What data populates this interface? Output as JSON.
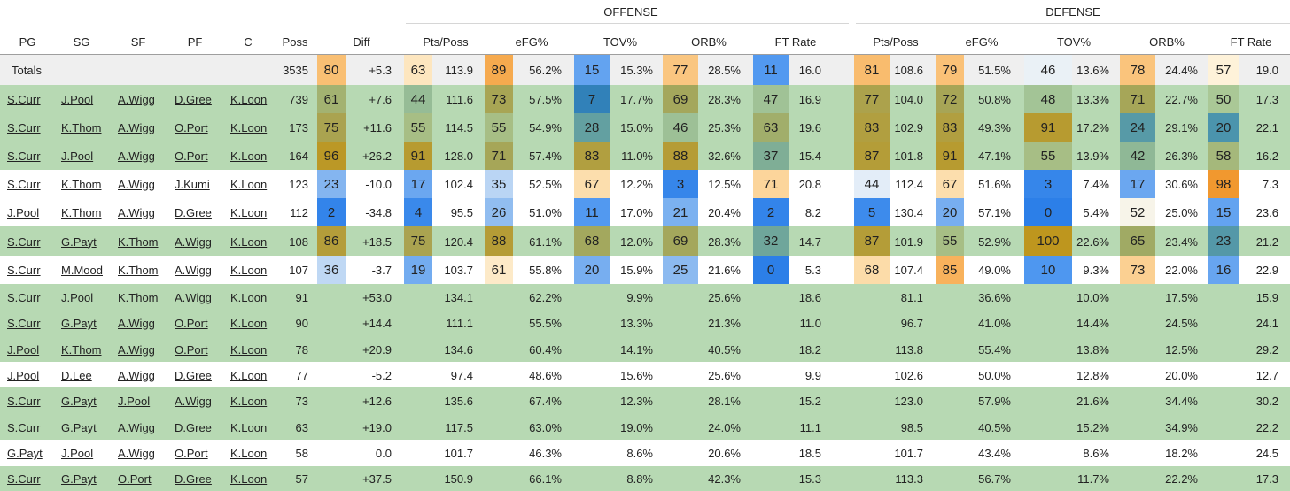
{
  "groups": {
    "offense": "OFFENSE",
    "defense": "DEFENSE"
  },
  "columns": [
    "PG",
    "SG",
    "SF",
    "PF",
    "C",
    "Poss",
    "Diff",
    "Pts/Poss",
    "eFG%",
    "TOV%",
    "ORB%",
    "FT Rate",
    "Pts/Poss",
    "eFG%",
    "TOV%",
    "ORB%",
    "FT Rate"
  ],
  "rows": [
    {
      "kind": "totals",
      "label": "Totals",
      "players": [
        "",
        "",
        "",
        "",
        ""
      ],
      "poss": "3535",
      "pcts": [
        80,
        63,
        89,
        15,
        77,
        11,
        81,
        79,
        46,
        78,
        57
      ],
      "vals": [
        "+5.3",
        "113.9",
        "56.2%",
        "15.3%",
        "28.5%",
        "16.0",
        "108.6",
        "51.5%",
        "13.6%",
        "24.4%",
        "19.0"
      ]
    },
    {
      "kind": "green",
      "players": [
        "S.Curr",
        "J.Pool",
        "A.Wigg",
        "D.Gree",
        "K.Loon"
      ],
      "poss": "739",
      "pcts": [
        61,
        44,
        73,
        7,
        69,
        47,
        77,
        72,
        48,
        71,
        50
      ],
      "vals": [
        "+7.6",
        "111.6",
        "57.5%",
        "17.7%",
        "28.3%",
        "16.9",
        "104.0",
        "50.8%",
        "13.3%",
        "22.7%",
        "17.3"
      ]
    },
    {
      "kind": "green",
      "players": [
        "S.Curr",
        "K.Thom",
        "A.Wigg",
        "O.Port",
        "K.Loon"
      ],
      "poss": "173",
      "pcts": [
        75,
        55,
        55,
        28,
        46,
        63,
        83,
        83,
        91,
        24,
        20
      ],
      "vals": [
        "+11.6",
        "114.5",
        "54.9%",
        "15.0%",
        "25.3%",
        "19.6",
        "102.9",
        "49.3%",
        "17.2%",
        "29.1%",
        "22.1"
      ]
    },
    {
      "kind": "green",
      "players": [
        "S.Curr",
        "J.Pool",
        "A.Wigg",
        "O.Port",
        "K.Loon"
      ],
      "poss": "164",
      "pcts": [
        96,
        91,
        71,
        83,
        88,
        37,
        87,
        91,
        55,
        42,
        58
      ],
      "vals": [
        "+26.2",
        "128.0",
        "57.4%",
        "11.0%",
        "32.6%",
        "15.4",
        "101.8",
        "47.1%",
        "13.9%",
        "26.3%",
        "16.2"
      ]
    },
    {
      "kind": "white",
      "players": [
        "S.Curr",
        "K.Thom",
        "A.Wigg",
        "J.Kumi",
        "K.Loon"
      ],
      "poss": "123",
      "pcts": [
        23,
        17,
        35,
        67,
        3,
        71,
        44,
        67,
        3,
        17,
        98
      ],
      "vals": [
        "-10.0",
        "102.4",
        "52.5%",
        "12.2%",
        "12.5%",
        "20.8",
        "112.4",
        "51.6%",
        "7.4%",
        "30.6%",
        "7.3"
      ]
    },
    {
      "kind": "white",
      "players": [
        "J.Pool",
        "K.Thom",
        "A.Wigg",
        "D.Gree",
        "K.Loon"
      ],
      "poss": "112",
      "pcts": [
        2,
        4,
        26,
        11,
        21,
        2,
        5,
        20,
        0,
        52,
        15
      ],
      "vals": [
        "-34.8",
        "95.5",
        "51.0%",
        "17.0%",
        "20.4%",
        "8.2",
        "130.4",
        "57.1%",
        "5.4%",
        "25.0%",
        "23.6"
      ]
    },
    {
      "kind": "green",
      "players": [
        "S.Curr",
        "G.Payt",
        "K.Thom",
        "A.Wigg",
        "K.Loon"
      ],
      "poss": "108",
      "pcts": [
        86,
        75,
        88,
        68,
        69,
        32,
        87,
        55,
        100,
        65,
        23
      ],
      "vals": [
        "+18.5",
        "120.4",
        "61.1%",
        "12.0%",
        "28.3%",
        "14.7",
        "101.9",
        "52.9%",
        "22.6%",
        "23.4%",
        "21.2"
      ]
    },
    {
      "kind": "white",
      "players": [
        "S.Curr",
        "M.Mood",
        "K.Thom",
        "A.Wigg",
        "K.Loon"
      ],
      "poss": "107",
      "pcts": [
        36,
        19,
        61,
        20,
        25,
        0,
        68,
        85,
        10,
        73,
        16
      ],
      "vals": [
        "-3.7",
        "103.7",
        "55.8%",
        "15.9%",
        "21.6%",
        "5.3",
        "107.4",
        "49.0%",
        "9.3%",
        "22.0%",
        "22.9"
      ]
    },
    {
      "kind": "green",
      "players": [
        "S.Curr",
        "J.Pool",
        "K.Thom",
        "A.Wigg",
        "K.Loon"
      ],
      "poss": "91",
      "pcts": [],
      "vals": [
        "+53.0",
        "134.1",
        "62.2%",
        "9.9%",
        "25.6%",
        "18.6",
        "81.1",
        "36.6%",
        "10.0%",
        "17.5%",
        "15.9"
      ]
    },
    {
      "kind": "green",
      "players": [
        "S.Curr",
        "G.Payt",
        "A.Wigg",
        "O.Port",
        "K.Loon"
      ],
      "poss": "90",
      "pcts": [],
      "vals": [
        "+14.4",
        "111.1",
        "55.5%",
        "13.3%",
        "21.3%",
        "11.0",
        "96.7",
        "41.0%",
        "14.4%",
        "24.5%",
        "24.1"
      ]
    },
    {
      "kind": "green",
      "players": [
        "J.Pool",
        "K.Thom",
        "A.Wigg",
        "O.Port",
        "K.Loon"
      ],
      "poss": "78",
      "pcts": [],
      "vals": [
        "+20.9",
        "134.6",
        "60.4%",
        "14.1%",
        "40.5%",
        "18.2",
        "113.8",
        "55.4%",
        "13.8%",
        "12.5%",
        "29.2"
      ]
    },
    {
      "kind": "white",
      "players": [
        "J.Pool",
        "D.Lee",
        "A.Wigg",
        "D.Gree",
        "K.Loon"
      ],
      "poss": "77",
      "pcts": [],
      "vals": [
        "-5.2",
        "97.4",
        "48.6%",
        "15.6%",
        "25.6%",
        "9.9",
        "102.6",
        "50.0%",
        "12.8%",
        "20.0%",
        "12.7"
      ]
    },
    {
      "kind": "green",
      "players": [
        "S.Curr",
        "G.Payt",
        "J.Pool",
        "A.Wigg",
        "K.Loon"
      ],
      "poss": "73",
      "pcts": [],
      "vals": [
        "+12.6",
        "135.6",
        "67.4%",
        "12.3%",
        "28.1%",
        "15.2",
        "123.0",
        "57.9%",
        "21.6%",
        "34.4%",
        "30.2"
      ]
    },
    {
      "kind": "green",
      "players": [
        "S.Curr",
        "G.Payt",
        "A.Wigg",
        "D.Gree",
        "K.Loon"
      ],
      "poss": "63",
      "pcts": [],
      "vals": [
        "+19.0",
        "117.5",
        "63.0%",
        "19.0%",
        "24.0%",
        "11.1",
        "98.5",
        "40.5%",
        "15.2%",
        "34.9%",
        "22.2"
      ]
    },
    {
      "kind": "white",
      "players": [
        "G.Payt",
        "J.Pool",
        "A.Wigg",
        "O.Port",
        "K.Loon"
      ],
      "poss": "58",
      "pcts": [],
      "vals": [
        "0.0",
        "101.7",
        "46.3%",
        "8.6%",
        "20.6%",
        "18.5",
        "101.7",
        "43.4%",
        "8.6%",
        "18.2%",
        "24.5"
      ]
    },
    {
      "kind": "green",
      "players": [
        "S.Curr",
        "G.Payt",
        "O.Port",
        "D.Gree",
        "K.Loon"
      ],
      "poss": "57",
      "pcts": [],
      "vals": [
        "+37.5",
        "150.9",
        "66.1%",
        "8.8%",
        "42.3%",
        "15.3",
        "113.3",
        "56.7%",
        "11.7%",
        "22.2%",
        "17.3"
      ]
    }
  ]
}
